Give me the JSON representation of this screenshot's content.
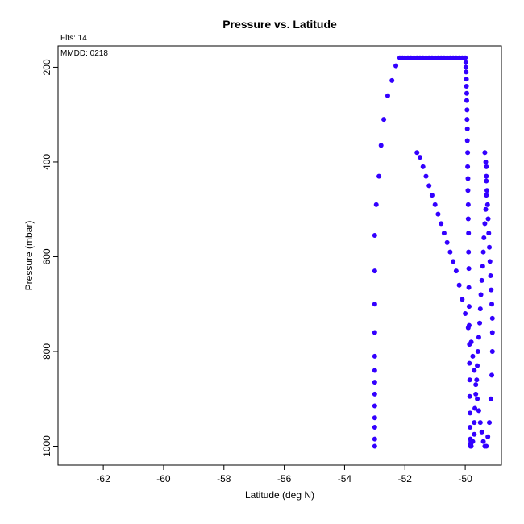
{
  "chart_data": {
    "type": "scatter",
    "title": "Pressure vs. Latitude",
    "xlabel": "Latitude (deg N)",
    "ylabel": "Pressure (mbar)",
    "flts_text": "Flts: 14",
    "mmdd_text": "MMDD: 0218",
    "xlim": [
      -63.5,
      -48.8
    ],
    "ylim": [
      1040,
      155
    ],
    "y_reversed": true,
    "x_ticks": [
      -62,
      -60,
      -58,
      -56,
      -54,
      -52,
      -50
    ],
    "x_tick_labels": [
      "-62",
      "-60",
      "-58",
      "-56",
      "-54",
      "-52",
      "-50"
    ],
    "y_ticks": [
      200,
      400,
      600,
      800,
      1000
    ],
    "y_tick_labels": [
      "200",
      "400",
      "600",
      "800",
      "1000"
    ],
    "grid": false,
    "point_color": "#3300ff",
    "series": [
      {
        "x": [
          -53.0,
          -53.0,
          -53.0,
          -53.0,
          -53.0,
          -53.0,
          -53.0,
          -53.0,
          -53.0,
          -53.0,
          -53.0,
          -53.0,
          -53.0,
          -52.95,
          -52.86,
          -52.79,
          -52.7,
          -52.57,
          -52.43,
          -52.3,
          -52.17,
          -52.08,
          -52.0,
          -51.9,
          -51.8,
          -51.7,
          -51.6,
          -51.5,
          -51.4,
          -51.3,
          -51.2,
          -51.1,
          -51.0,
          -50.9,
          -50.8,
          -50.7,
          -50.6,
          -50.5,
          -50.4,
          -50.3,
          -50.2,
          -50.1,
          -50.0,
          -49.98,
          -49.98,
          -49.97,
          -49.96,
          -49.96,
          -49.95,
          -49.95,
          -49.94,
          -49.94,
          -49.93,
          -49.93,
          -49.92,
          -49.92,
          -49.91,
          -49.91,
          -49.9,
          -49.9,
          -49.89,
          -49.89,
          -49.88,
          -49.88,
          -49.87,
          -49.87,
          -49.86,
          -49.86,
          -49.85,
          -49.85,
          -49.84,
          -49.84,
          -49.83,
          -49.83,
          -49.82,
          -49.82,
          -49.81,
          -49.81
        ],
        "y": [
          1000,
          985,
          960,
          940,
          915,
          890,
          865,
          840,
          810,
          760,
          700,
          630,
          555,
          490,
          430,
          365,
          310,
          260,
          228,
          197,
          180,
          180,
          180,
          180,
          180,
          180,
          180,
          180,
          180,
          180,
          180,
          180,
          180,
          180,
          180,
          180,
          180,
          180,
          180,
          180,
          180,
          180,
          180,
          190,
          200,
          210,
          225,
          240,
          255,
          270,
          290,
          310,
          330,
          355,
          380,
          410,
          435,
          460,
          490,
          520,
          550,
          590,
          625,
          665,
          705,
          745,
          785,
          825,
          860,
          895,
          930,
          960,
          985,
          995,
          1000,
          1000,
          995,
          990
        ]
      },
      {
        "x": [
          -51.6,
          -51.5,
          -51.4,
          -51.3,
          -51.2,
          -51.1,
          -51.0,
          -50.9,
          -50.8,
          -50.7,
          -50.6,
          -50.5,
          -50.4,
          -50.3,
          -50.2,
          -50.1,
          -50.0,
          -49.9,
          -49.8,
          -49.75,
          -49.7,
          -49.65,
          -49.6,
          -49.55,
          -49.5,
          -49.45,
          -49.4,
          -49.35
        ],
        "y": [
          380,
          390,
          410,
          430,
          450,
          470,
          490,
          510,
          530,
          550,
          570,
          590,
          610,
          630,
          660,
          690,
          720,
          750,
          780,
          810,
          840,
          870,
          900,
          925,
          950,
          970,
          990,
          1000
        ]
      },
      {
        "x": [
          -49.8,
          -49.75,
          -49.7,
          -49.7,
          -49.68,
          -49.65,
          -49.62,
          -49.6,
          -49.58,
          -49.55,
          -49.52,
          -49.5,
          -49.48,
          -49.45,
          -49.42,
          -49.4,
          -49.38,
          -49.35,
          -49.32,
          -49.3,
          -49.3,
          -49.3
        ],
        "y": [
          1000,
          990,
          975,
          950,
          920,
          890,
          860,
          830,
          800,
          770,
          740,
          710,
          680,
          650,
          620,
          590,
          560,
          530,
          500,
          470,
          440,
          410
        ]
      },
      {
        "x": [
          -49.35,
          -49.32,
          -49.3,
          -49.28,
          -49.26,
          -49.24,
          -49.22,
          -49.2,
          -49.18,
          -49.16,
          -49.14,
          -49.12,
          -49.1,
          -49.1,
          -49.1,
          -49.12,
          -49.15,
          -49.2,
          -49.25,
          -49.3
        ],
        "y": [
          380,
          400,
          430,
          460,
          490,
          520,
          550,
          580,
          610,
          640,
          670,
          700,
          730,
          760,
          800,
          850,
          900,
          950,
          980,
          1000
        ]
      }
    ]
  }
}
